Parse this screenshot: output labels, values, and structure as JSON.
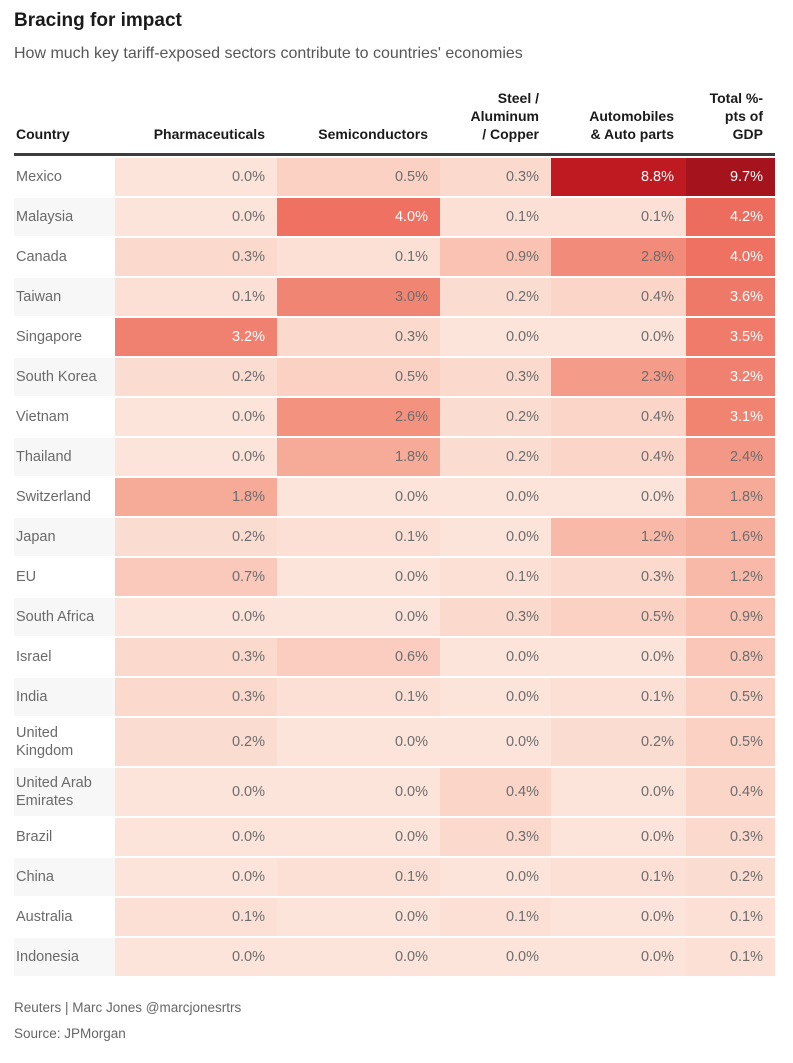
{
  "header": {
    "title": "Bracing for impact",
    "subtitle": "How much key tariff-exposed sectors contribute to countries' economies"
  },
  "chart_data": {
    "type": "heatmap",
    "title": "Bracing for impact",
    "subtitle": "How much key tariff-exposed sectors contribute to countries' economies",
    "unit": "% of GDP",
    "value_range": [
      0,
      9.7
    ],
    "legend": "none",
    "columns": [
      {
        "key": "country",
        "label": "Country"
      },
      {
        "key": "pharmaceuticals",
        "label": "Pharmaceuticals"
      },
      {
        "key": "semiconductors",
        "label": "Semiconductors"
      },
      {
        "key": "steel_aluminum_copper",
        "label": "Steel /\nAluminum\n/ Copper"
      },
      {
        "key": "automobiles_auto_parts",
        "label": "Automobiles\n& Auto parts"
      },
      {
        "key": "total_pts_gdp",
        "label": "Total %-\npts of\nGDP"
      }
    ],
    "rows": [
      {
        "country": "Mexico",
        "values": [
          0.0,
          0.5,
          0.3,
          8.8,
          9.7
        ]
      },
      {
        "country": "Malaysia",
        "values": [
          0.0,
          4.0,
          0.1,
          0.1,
          4.2
        ]
      },
      {
        "country": "Canada",
        "values": [
          0.3,
          0.1,
          0.9,
          2.8,
          4.0
        ]
      },
      {
        "country": "Taiwan",
        "values": [
          0.1,
          3.0,
          0.2,
          0.4,
          3.6
        ]
      },
      {
        "country": "Singapore",
        "values": [
          3.2,
          0.3,
          0.0,
          0.0,
          3.5
        ]
      },
      {
        "country": "South Korea",
        "values": [
          0.2,
          0.5,
          0.3,
          2.3,
          3.2
        ]
      },
      {
        "country": "Vietnam",
        "values": [
          0.0,
          2.6,
          0.2,
          0.4,
          3.1
        ]
      },
      {
        "country": "Thailand",
        "values": [
          0.0,
          1.8,
          0.2,
          0.4,
          2.4
        ]
      },
      {
        "country": "Switzerland",
        "values": [
          1.8,
          0.0,
          0.0,
          0.0,
          1.8
        ]
      },
      {
        "country": "Japan",
        "values": [
          0.2,
          0.1,
          0.0,
          1.2,
          1.6
        ]
      },
      {
        "country": "EU",
        "values": [
          0.7,
          0.0,
          0.1,
          0.3,
          1.2
        ]
      },
      {
        "country": "South Africa",
        "values": [
          0.0,
          0.0,
          0.3,
          0.5,
          0.9
        ]
      },
      {
        "country": "Israel",
        "values": [
          0.3,
          0.6,
          0.0,
          0.0,
          0.8
        ]
      },
      {
        "country": "India",
        "values": [
          0.3,
          0.1,
          0.0,
          0.1,
          0.5
        ]
      },
      {
        "country": "United Kingdom",
        "values": [
          0.2,
          0.0,
          0.0,
          0.2,
          0.5
        ]
      },
      {
        "country": "United Arab Emirates",
        "values": [
          0.0,
          0.0,
          0.4,
          0.0,
          0.4
        ]
      },
      {
        "country": "Brazil",
        "values": [
          0.0,
          0.0,
          0.3,
          0.0,
          0.3
        ]
      },
      {
        "country": "China",
        "values": [
          0.0,
          0.1,
          0.0,
          0.1,
          0.2
        ]
      },
      {
        "country": "Australia",
        "values": [
          0.1,
          0.0,
          0.1,
          0.0,
          0.1
        ]
      },
      {
        "country": "Indonesia",
        "values": [
          0.0,
          0.0,
          0.0,
          0.0,
          0.1
        ]
      }
    ]
  },
  "colors": {
    "ramp_stops": [
      [
        0.0,
        "#fce4da"
      ],
      [
        1.0,
        "#f9beae"
      ],
      [
        2.0,
        "#f5a592"
      ],
      [
        3.0,
        "#f18573"
      ],
      [
        4.0,
        "#ee7162"
      ],
      [
        5.0,
        "#e65a49"
      ],
      [
        8.8,
        "#bf1a21"
      ],
      [
        9.7,
        "#a5141c"
      ]
    ],
    "white_text_threshold": 3.1,
    "cell_text_dark": "#6d6d6d",
    "cell_text_light": "#ffffff",
    "zebra": "#f7f7f7",
    "header_rule": "#3d3d3d"
  },
  "footer": {
    "credit": "Reuters | Marc Jones @marcjonesrtrs",
    "source": "Source: JPMorgan"
  }
}
